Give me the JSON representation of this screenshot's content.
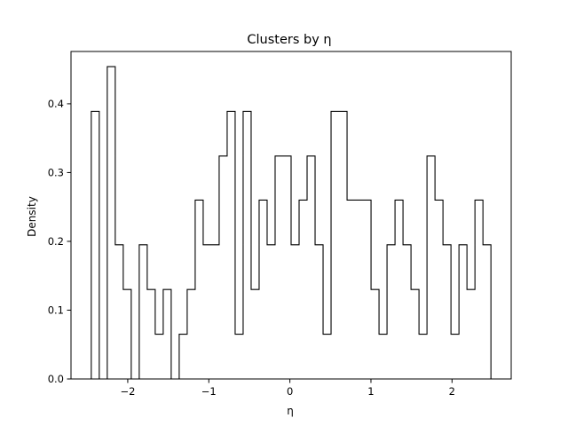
{
  "chart_data": {
    "type": "histogram",
    "title": "Clusters by η",
    "xlabel": "η",
    "ylabel": "Density",
    "xlim": [
      -2.7,
      2.73
    ],
    "ylim": [
      0.0,
      0.476
    ],
    "x_ticks": [
      -2,
      -1,
      0,
      1,
      2
    ],
    "x_tick_labels": [
      "−2",
      "−1",
      "0",
      "1",
      "2"
    ],
    "y_ticks": [
      0.0,
      0.1,
      0.2,
      0.3,
      0.4
    ],
    "y_tick_labels": [
      "0.0",
      "0.1",
      "0.2",
      "0.3",
      "0.4"
    ],
    "grid": false,
    "legend": "none",
    "histtype": "step",
    "bin_range": [
      -2.45,
      2.48
    ],
    "bin_width": 0.1,
    "densities": [
      0.389,
      0.0,
      0.454,
      0.195,
      0.13,
      0.0,
      0.195,
      0.13,
      0.065,
      0.13,
      0.0,
      0.065,
      0.13,
      0.26,
      0.195,
      0.195,
      0.324,
      0.389,
      0.065,
      0.389,
      0.13,
      0.26,
      0.195,
      0.324,
      0.324,
      0.195,
      0.26,
      0.324,
      0.195,
      0.065,
      0.389,
      0.389,
      0.26,
      0.26,
      0.26,
      0.13,
      0.065,
      0.195,
      0.26,
      0.195,
      0.13,
      0.065,
      0.324,
      0.26,
      0.195,
      0.065,
      0.195,
      0.13,
      0.26,
      0.195
    ]
  }
}
